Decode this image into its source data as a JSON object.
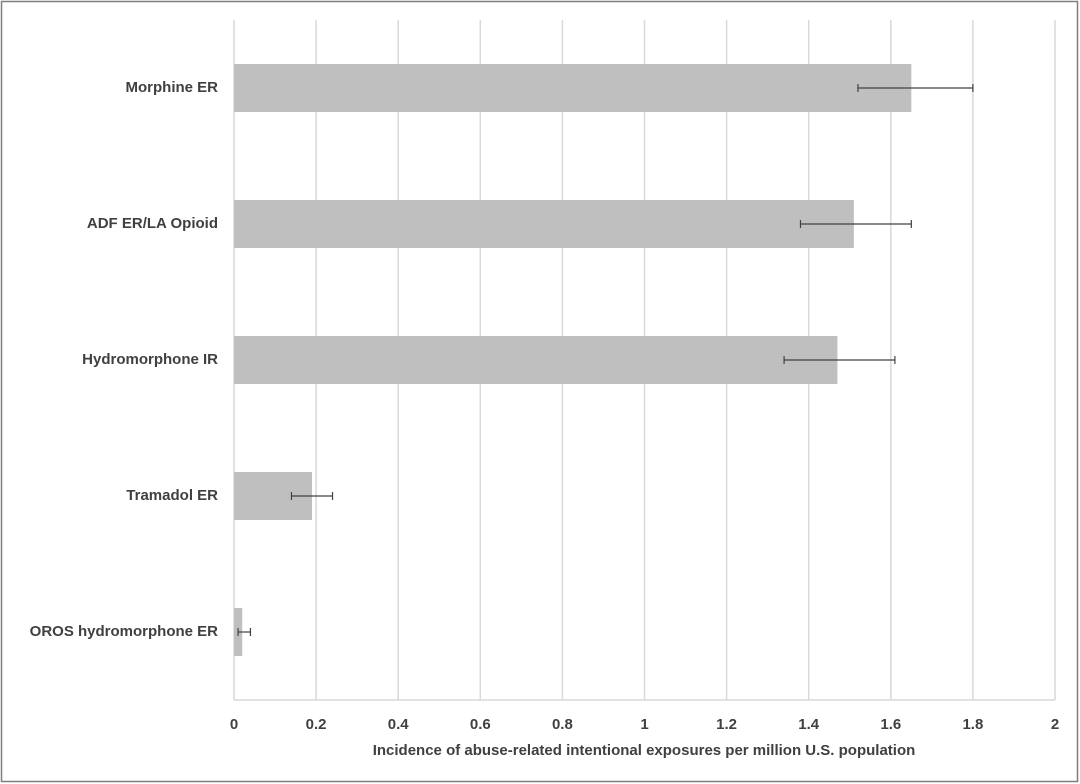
{
  "chart_data": {
    "type": "hbar",
    "categories": [
      "Morphine ER",
      "ADF ER/LA Opioid",
      "Hydromorphone IR",
      "Tramadol ER",
      "OROS hydromorphone ER"
    ],
    "values": [
      1.65,
      1.51,
      1.47,
      0.19,
      0.02
    ],
    "lower": [
      1.52,
      1.38,
      1.34,
      0.14,
      0.01
    ],
    "upper": [
      1.8,
      1.65,
      1.61,
      0.24,
      0.04
    ],
    "color": "#bfbfbf",
    "xlabel": "Incidence of abuse-related intentional exposures per million U.S. population",
    "xlim": [
      0,
      2
    ],
    "xticks": [
      0,
      0.2,
      0.4,
      0.6,
      0.8,
      1,
      1.2,
      1.4,
      1.6,
      1.8,
      2
    ],
    "grid": true
  }
}
